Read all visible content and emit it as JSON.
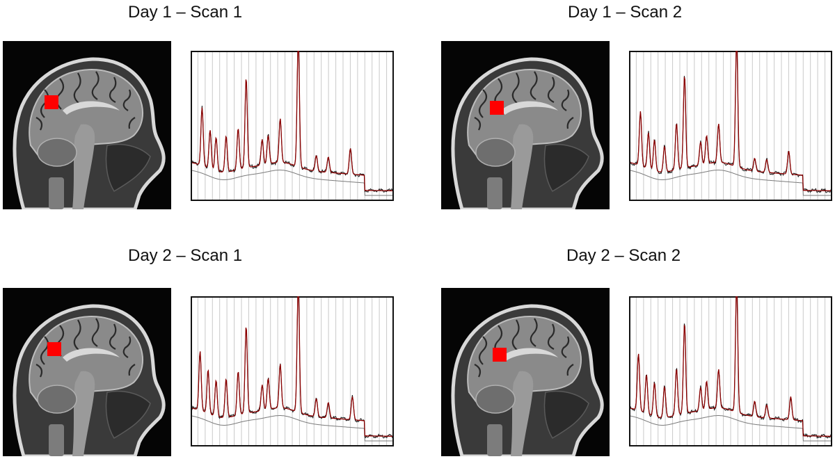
{
  "panels": [
    {
      "title": "Day 1 – Scan 1",
      "voxel_color": "#ff0000",
      "spectrum": {
        "fitted_color": "#8b0000",
        "data_color": "#1a1a1a",
        "baseline_color": "#7a7a7a"
      }
    },
    {
      "title": "Day 1 – Scan 2",
      "voxel_color": "#ff0000",
      "spectrum": {
        "fitted_color": "#8b0000",
        "data_color": "#1a1a1a",
        "baseline_color": "#7a7a7a"
      }
    },
    {
      "title": "Day 2 – Scan 1",
      "voxel_color": "#ff0000",
      "spectrum": {
        "fitted_color": "#8b0000",
        "data_color": "#1a1a1a",
        "baseline_color": "#7a7a7a"
      }
    },
    {
      "title": "Day 2 – Scan 2",
      "voxel_color": "#ff0000",
      "spectrum": {
        "fitted_color": "#8b0000",
        "data_color": "#1a1a1a",
        "baseline_color": "#7a7a7a"
      }
    }
  ]
}
